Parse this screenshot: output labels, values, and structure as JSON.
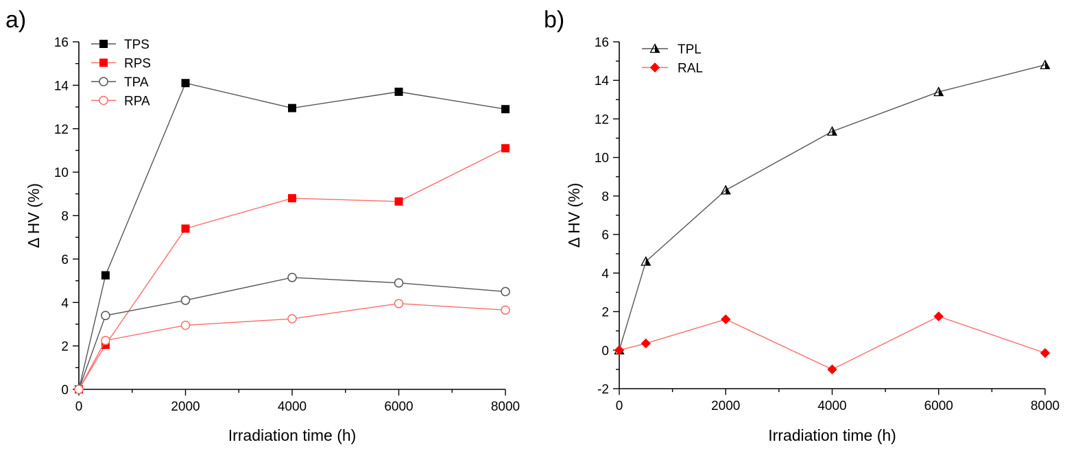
{
  "chart_data": [
    {
      "type": "line",
      "panel_label": "a)",
      "xlabel": "Irradiation time (h)",
      "ylabel": "Δ HV (%)",
      "xlim": [
        0,
        8000
      ],
      "ylim": [
        0,
        16
      ],
      "x_ticks": [
        0,
        2000,
        4000,
        6000,
        8000
      ],
      "y_ticks": [
        0,
        2,
        4,
        6,
        8,
        10,
        12,
        14,
        16
      ],
      "legend_position": "top-left",
      "series": [
        {
          "name": "TPS",
          "marker": "square-filled",
          "color": "#000000",
          "line_color": "#555555",
          "x": [
            0,
            500,
            2000,
            4000,
            6000,
            8000
          ],
          "y": [
            0,
            5.25,
            14.1,
            12.95,
            13.7,
            12.9
          ]
        },
        {
          "name": "RPS",
          "marker": "square-filled",
          "color": "#ff0000",
          "line_color": "#ff6b6b",
          "x": [
            0,
            500,
            2000,
            4000,
            6000,
            8000
          ],
          "y": [
            0,
            2.05,
            7.4,
            8.8,
            8.65,
            11.1
          ]
        },
        {
          "name": "TPA",
          "marker": "circle-open",
          "color": "#555555",
          "line_color": "#555555",
          "x": [
            0,
            500,
            2000,
            4000,
            6000,
            8000
          ],
          "y": [
            0,
            3.4,
            4.1,
            5.15,
            4.9,
            4.5
          ]
        },
        {
          "name": "RPA",
          "marker": "circle-open",
          "color": "#ff6b6b",
          "line_color": "#ff6b6b",
          "x": [
            0,
            500,
            2000,
            4000,
            6000,
            8000
          ],
          "y": [
            0,
            2.25,
            2.95,
            3.25,
            3.95,
            3.65
          ]
        }
      ]
    },
    {
      "type": "line",
      "panel_label": "b)",
      "xlabel": "Irradiation time (h)",
      "ylabel": "Δ HV (%)",
      "xlim": [
        0,
        8000
      ],
      "ylim": [
        -2,
        16
      ],
      "x_ticks": [
        0,
        2000,
        4000,
        6000,
        8000
      ],
      "y_ticks": [
        -2,
        0,
        2,
        4,
        6,
        8,
        10,
        12,
        14,
        16
      ],
      "legend_position": "top-left",
      "series": [
        {
          "name": "TPL",
          "marker": "triangle-half",
          "color": "#000000",
          "line_color": "#555555",
          "x": [
            0,
            500,
            2000,
            4000,
            6000,
            8000
          ],
          "y": [
            0,
            4.6,
            8.3,
            11.35,
            13.4,
            14.8
          ]
        },
        {
          "name": "RAL",
          "marker": "diamond-filled",
          "color": "#ff0000",
          "line_color": "#ff6b6b",
          "x": [
            0,
            500,
            2000,
            4000,
            6000,
            8000
          ],
          "y": [
            0,
            0.35,
            1.6,
            -1.0,
            1.75,
            -0.15
          ]
        }
      ]
    }
  ]
}
